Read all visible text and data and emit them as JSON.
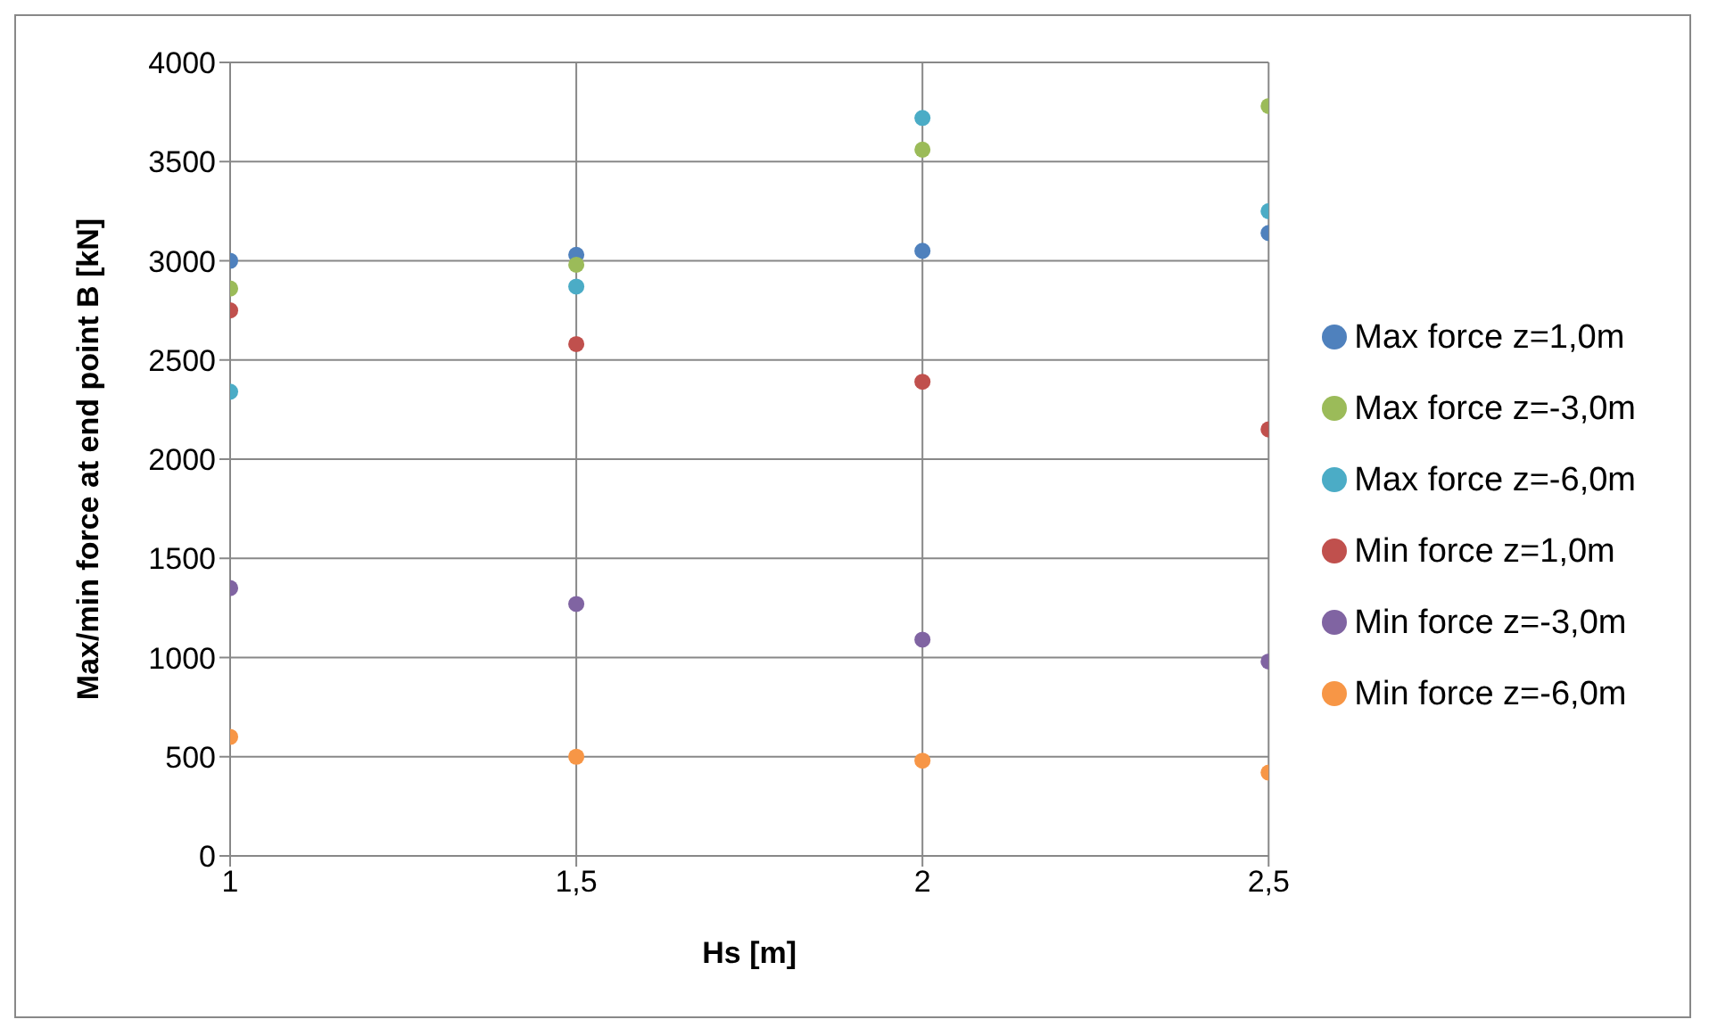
{
  "chart_data": {
    "type": "scatter",
    "xlabel": "Hs [m]",
    "ylabel": "Max/min force at end point B [kN]",
    "x": [
      1,
      1.5,
      2,
      2.5
    ],
    "series": [
      {
        "name": "Max force z=1,0m",
        "color": "#4f81bd",
        "values": [
          3000,
          3030,
          3050,
          3140
        ]
      },
      {
        "name": "Max force z=-3,0m",
        "color": "#9bbb59",
        "values": [
          2860,
          2980,
          3560,
          3780
        ]
      },
      {
        "name": "Max force z=-6,0m",
        "color": "#4bacc6",
        "values": [
          2340,
          2870,
          3720,
          3250
        ]
      },
      {
        "name": "Min force z=1,0m",
        "color": "#c0504d",
        "values": [
          2750,
          2580,
          2390,
          2150
        ]
      },
      {
        "name": "Min force z=-3,0m",
        "color": "#8064a2",
        "values": [
          1350,
          1270,
          1090,
          980
        ]
      },
      {
        "name": "Min force z=-6,0m",
        "color": "#f79646",
        "values": [
          600,
          500,
          480,
          420
        ]
      }
    ],
    "xlim": [
      1,
      2.5
    ],
    "xticks": [
      1,
      {
        "value": 1.5,
        "label": "1,5"
      },
      2,
      {
        "value": 2.5,
        "label": "2,5"
      }
    ],
    "ylim": [
      0,
      4000
    ],
    "yticks": [
      0,
      500,
      1000,
      1500,
      2000,
      2500,
      3000,
      3500,
      4000
    ],
    "grid": true,
    "legend": "right",
    "marker": "circle"
  }
}
